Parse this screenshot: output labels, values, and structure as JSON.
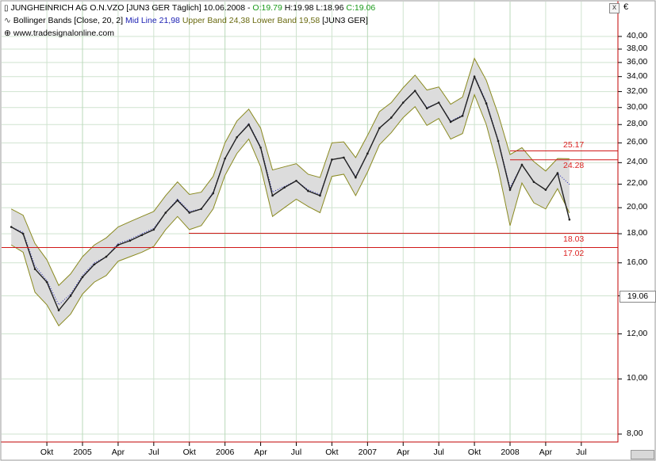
{
  "header": {
    "title_line": "JUNGHEINRICH AG O.N.VZO [JUN3 GER  Täglich] 10.06.2008 - ",
    "open": "O:19.79",
    "high": "H:19.98",
    "low": "L:18.96",
    "close": "C:19.06",
    "indicator_prefix": "Bollinger Bands [Close, 20, 2]",
    "mid_line": "Mid Line 21,98",
    "bands": "Upper Band 24,38 Lower Band 19,58",
    "indicator_suffix": "[JUN3 GER]",
    "source": "www.tradesignalonline.com",
    "close_label": "x"
  },
  "colors": {
    "frame": "#c00000",
    "price": "#202020",
    "band_fill": "#dcdcdc",
    "band_line": "#8a8a20",
    "mid_line": "#1e22b4",
    "grid": "#cfe3cf",
    "levels": "#d01818"
  },
  "chart_data": {
    "type": "line",
    "title": "JUNGHEINRICH AG O.N.VZO",
    "currency": "€",
    "y_ticks": [
      "40,00",
      "38,00",
      "36,00",
      "34,00",
      "32,00",
      "30,00",
      "28,00",
      "26,00",
      "24,00",
      "22,00",
      "20,00",
      "18,00",
      "16,00",
      "14,00",
      "12,00",
      "10,00",
      "8,00"
    ],
    "x_ticks": [
      "Okt",
      "2005",
      "Apr",
      "Jul",
      "Okt",
      "2006",
      "Apr",
      "Jul",
      "Okt",
      "2007",
      "Apr",
      "Jul",
      "Okt",
      "2008",
      "Apr",
      "Jul"
    ],
    "ylim": [
      7.5,
      41.5
    ],
    "y_scale": "log",
    "grid": true,
    "last_value": "19.06",
    "levels": [
      {
        "value": 25.17,
        "label": "25.17"
      },
      {
        "value": 24.28,
        "label": "24.28"
      },
      {
        "value": 18.03,
        "label": "18.03"
      },
      {
        "value": 17.02,
        "label": "17.02"
      }
    ],
    "series": [
      {
        "name": "JUNGHEINRICH AG O.N.VZO",
        "type": "price",
        "x": [
          "2004-07",
          "2004-08",
          "2004-09",
          "2004-10",
          "2004-11",
          "2004-12",
          "2005-01",
          "2005-02",
          "2005-03",
          "2005-04",
          "2005-05",
          "2005-06",
          "2005-07",
          "2005-08",
          "2005-09",
          "2005-10",
          "2005-11",
          "2005-12",
          "2006-01",
          "2006-02",
          "2006-03",
          "2006-04",
          "2006-05",
          "2006-06",
          "2006-07",
          "2006-08",
          "2006-09",
          "2006-10",
          "2006-11",
          "2006-12",
          "2007-01",
          "2007-02",
          "2007-03",
          "2007-04",
          "2007-05",
          "2007-06",
          "2007-07",
          "2007-08",
          "2007-09",
          "2007-10",
          "2007-11",
          "2007-12",
          "2008-01",
          "2008-02",
          "2008-03",
          "2008-04",
          "2008-05",
          "2008-06"
        ],
        "y": [
          18.5,
          18.0,
          15.6,
          14.8,
          13.2,
          14.0,
          15.1,
          15.9,
          16.4,
          17.2,
          17.5,
          17.9,
          18.3,
          19.6,
          20.6,
          19.6,
          19.9,
          21.2,
          24.4,
          26.6,
          28.0,
          25.5,
          21.0,
          21.7,
          22.3,
          21.4,
          21.0,
          24.3,
          24.5,
          22.6,
          24.9,
          27.6,
          28.8,
          30.6,
          32.1,
          29.9,
          30.6,
          28.3,
          29.0,
          34.0,
          30.5,
          26.2,
          21.5,
          23.8,
          22.2,
          21.5,
          23.0,
          19.06
        ]
      },
      {
        "name": "Upper Band",
        "type": "band_upper",
        "y": [
          19.9,
          19.4,
          17.3,
          16.2,
          14.6,
          15.3,
          16.4,
          17.2,
          17.7,
          18.5,
          18.9,
          19.3,
          19.7,
          21.0,
          22.2,
          21.1,
          21.3,
          22.7,
          26.0,
          28.4,
          29.8,
          27.6,
          23.3,
          23.6,
          23.9,
          22.9,
          22.6,
          26.0,
          26.1,
          24.5,
          26.8,
          29.5,
          30.6,
          32.5,
          34.2,
          32.2,
          32.6,
          30.4,
          31.3,
          36.6,
          33.5,
          29.2,
          24.8,
          25.5,
          24.1,
          23.2,
          24.4,
          24.38
        ]
      },
      {
        "name": "Lower Band",
        "type": "band_lower",
        "y": [
          17.2,
          16.7,
          14.2,
          13.5,
          12.4,
          13.0,
          14.1,
          14.8,
          15.2,
          16.1,
          16.4,
          16.7,
          17.1,
          18.3,
          19.3,
          18.3,
          18.6,
          19.9,
          22.8,
          24.9,
          26.4,
          23.6,
          19.3,
          20.0,
          20.7,
          20.1,
          19.6,
          22.7,
          22.9,
          21.0,
          23.1,
          25.8,
          27.1,
          28.8,
          30.1,
          27.9,
          28.7,
          26.4,
          27.0,
          31.6,
          28.0,
          23.4,
          18.6,
          22.1,
          20.4,
          19.9,
          21.6,
          19.58
        ]
      },
      {
        "name": "Mid Line",
        "type": "mid",
        "y": [
          18.5,
          18.1,
          15.8,
          14.9,
          13.5,
          14.1,
          15.2,
          16.0,
          16.4,
          17.3,
          17.6,
          18.0,
          18.4,
          19.6,
          20.7,
          19.7,
          19.9,
          21.3,
          24.4,
          26.6,
          28.1,
          25.6,
          21.3,
          21.8,
          22.3,
          21.5,
          21.1,
          24.3,
          24.5,
          22.7,
          24.9,
          27.6,
          28.8,
          30.6,
          32.1,
          30.0,
          30.6,
          28.4,
          29.1,
          34.1,
          30.7,
          26.3,
          21.7,
          23.8,
          22.2,
          21.5,
          23.0,
          21.98
        ]
      }
    ]
  }
}
